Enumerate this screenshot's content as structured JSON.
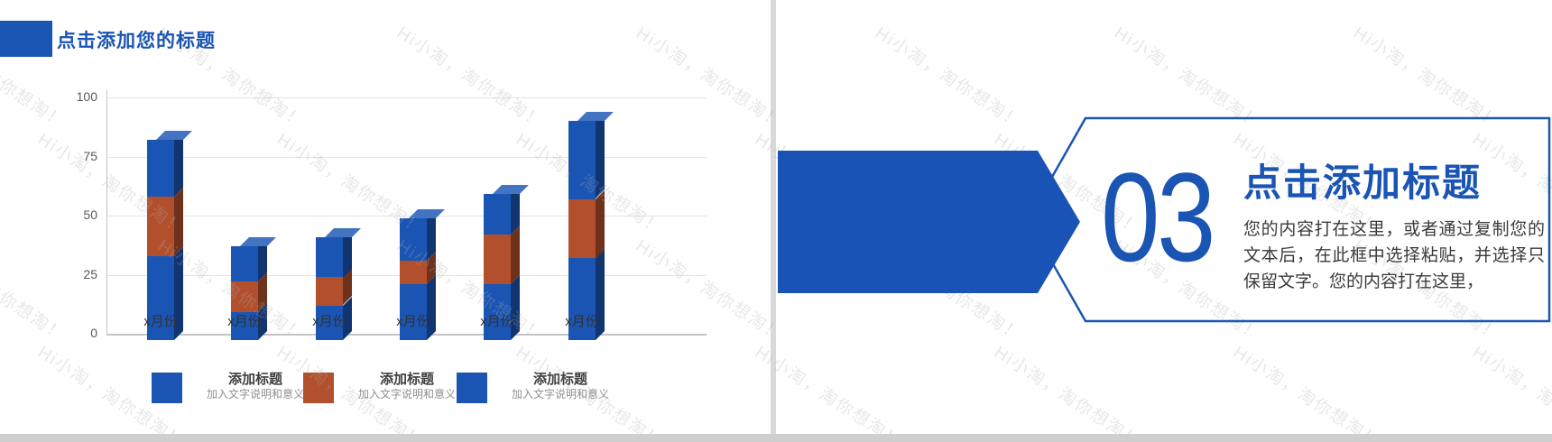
{
  "slide": {
    "header": {
      "title": "点击添加您的标题"
    },
    "right_panel": {
      "section_number": "03",
      "title": "点击添加标题",
      "body": "您的内容打在这里，或者通过复制您的文本后，在此框中选择粘贴，并选择只保留文字。您的内容打在这里，"
    },
    "watermark_text": "Hi小淘，淘你想淘！"
  },
  "chart_data": {
    "type": "bar",
    "stacked": true,
    "title": "",
    "xlabel": "",
    "ylabel": "",
    "categories": [
      "x月份",
      "x月份",
      "x月份",
      "x月份",
      "x月份",
      "x月份"
    ],
    "series": [
      {
        "name": "添加标题",
        "color": "#1A55B4",
        "values": [
          33,
          9,
          12,
          21,
          21,
          32
        ]
      },
      {
        "name": "添加标题",
        "color": "#B2502D",
        "values": [
          25,
          13,
          12,
          10,
          21,
          25
        ]
      },
      {
        "name": "添加标题",
        "color": "#1A55B4",
        "values": [
          24,
          15,
          17,
          18,
          17,
          33
        ]
      }
    ],
    "ylim": [
      0,
      100
    ],
    "yticks": [
      0,
      25,
      50,
      75,
      100
    ],
    "grid": true,
    "legend_position": "bottom"
  },
  "legend": [
    {
      "label": "添加标题",
      "desc": "加入文字说明和意义",
      "color": "#1A55B4"
    },
    {
      "label": "添加标题",
      "desc": "加入文字说明和意义",
      "color": "#B2502D"
    },
    {
      "label": "添加标题",
      "desc": "加入文字说明和意义",
      "color": "#1A55B4"
    }
  ],
  "colors": {
    "brand_blue": "#1A55B4",
    "arrow_blue": "#1953B5",
    "orange": "#B2502D",
    "divider": "#D9D9D9",
    "footer_bar": "#CFCFCF",
    "grid_line": "#E4E4E4",
    "axis_line": "#C4C4C4",
    "tick_text": "#595959",
    "category_text": "#333333",
    "legend_label": "#3F3F3F",
    "legend_desc": "#8F8F8F",
    "watermark": "#ABABAB"
  }
}
